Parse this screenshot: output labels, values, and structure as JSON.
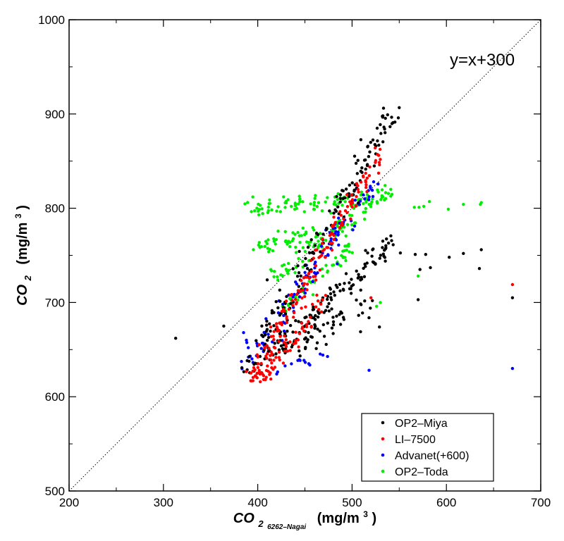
{
  "chart_data": {
    "type": "scatter",
    "title": "",
    "xlabel": {
      "main": "CO",
      "sub": "2",
      "sub2": "6262–Nagai",
      "unit": "(mg/m",
      "unit_sup": "3",
      "unit_end": ")"
    },
    "ylabel": {
      "main": "CO",
      "sub": "2",
      "unit": "(mg/m",
      "unit_sup": "3",
      "unit_end": ")"
    },
    "xlim": [
      200,
      700
    ],
    "ylim": [
      500,
      1000
    ],
    "xticks": [
      200,
      300,
      400,
      500,
      600,
      700
    ],
    "yticks": [
      500,
      600,
      700,
      800,
      900,
      1000
    ],
    "reference_line": {
      "label": "y=x+300",
      "slope": 1,
      "intercept": 300,
      "style": "dotted"
    },
    "legend_position": "bottom-right",
    "colors": {
      "OP2-Miya": "#000000",
      "LI-7500": "#ff0000",
      "Advanet(+600)": "#0000ff",
      "OP2-Toda": "#00ee00"
    },
    "series": [
      {
        "name": "OP2–Miya",
        "key": "OP2-Miya",
        "clusters": [
          {
            "x0": 388,
            "y0": 622,
            "x1": 545,
            "y1": 908,
            "n": 160,
            "spread": 16
          },
          {
            "x0": 410,
            "y0": 640,
            "x1": 545,
            "y1": 765,
            "n": 130,
            "spread": 12
          },
          {
            "x0": 440,
            "y0": 650,
            "x1": 520,
            "y1": 700,
            "n": 40,
            "spread": 10
          }
        ],
        "points": [
          [
            313,
            662
          ],
          [
            364,
            675
          ],
          [
            410,
            724
          ],
          [
            509,
            669
          ],
          [
            529,
            674
          ],
          [
            567,
            751
          ],
          [
            570,
            703
          ],
          [
            572,
            735
          ],
          [
            578,
            751
          ],
          [
            583,
            737
          ],
          [
            603,
            748
          ],
          [
            618,
            752
          ],
          [
            635,
            736
          ],
          [
            637,
            756
          ],
          [
            670,
            705
          ]
        ]
      },
      {
        "name": "LI–7500",
        "key": "LI-7500",
        "clusters": [
          {
            "x0": 388,
            "y0": 612,
            "x1": 530,
            "y1": 860,
            "n": 170,
            "spread": 12
          },
          {
            "x0": 405,
            "y0": 618,
            "x1": 470,
            "y1": 705,
            "n": 60,
            "spread": 9
          }
        ],
        "points": [
          [
            520,
            705
          ],
          [
            670,
            719
          ]
        ]
      },
      {
        "name": "Advanet(+600)",
        "key": "Advanet(+600)",
        "clusters": [
          {
            "x0": 386,
            "y0": 630,
            "x1": 525,
            "y1": 830,
            "n": 110,
            "spread": 14
          },
          {
            "x0": 420,
            "y0": 628,
            "x1": 475,
            "y1": 645,
            "n": 14,
            "spread": 6
          }
        ],
        "points": [
          [
            385,
            668
          ],
          [
            388,
            660
          ],
          [
            390,
            652
          ],
          [
            392,
            643
          ],
          [
            518,
            628
          ],
          [
            670,
            630
          ]
        ]
      },
      {
        "name": "OP2–Toda",
        "key": "OP2-Toda",
        "clusters": [
          {
            "x0": 392,
            "y0": 800,
            "x1": 540,
            "y1": 812,
            "n": 110,
            "spread": 9
          },
          {
            "x0": 395,
            "y0": 760,
            "x1": 510,
            "y1": 780,
            "n": 70,
            "spread": 9
          },
          {
            "x0": 415,
            "y0": 725,
            "x1": 520,
            "y1": 800,
            "n": 60,
            "spread": 10
          },
          {
            "x0": 425,
            "y0": 690,
            "x1": 500,
            "y1": 760,
            "n": 50,
            "spread": 8
          }
        ],
        "points": [
          [
            526,
            696
          ],
          [
            530,
            700
          ],
          [
            566,
            801
          ],
          [
            571,
            801
          ],
          [
            576,
            802
          ],
          [
            582,
            807
          ],
          [
            570,
            728
          ],
          [
            602,
            799
          ],
          [
            618,
            804
          ],
          [
            636,
            804
          ],
          [
            637,
            806
          ]
        ]
      }
    ]
  }
}
